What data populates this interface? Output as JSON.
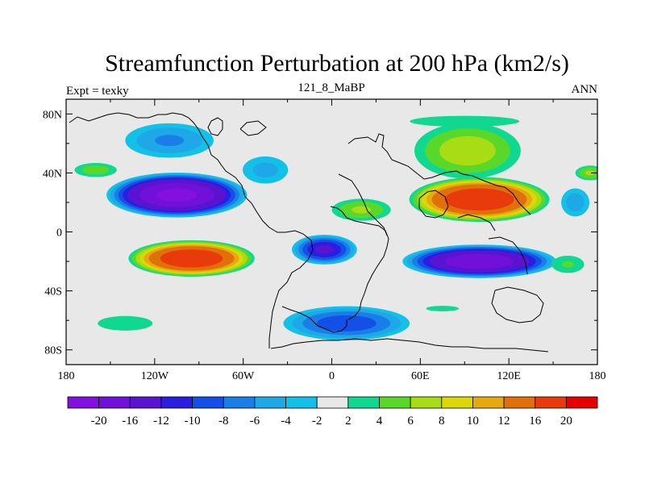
{
  "chart_data": {
    "type": "heatmap",
    "title": "Streamfunction Perturbation at 200 hPa (km2/s)",
    "subtitle_left": "Expt = texky",
    "subtitle_center": "121_8_MaBP",
    "subtitle_right": "ANN",
    "x_ticks": [
      "180",
      "120W",
      "60W",
      "0",
      "60E",
      "120E",
      "180"
    ],
    "x_tick_values": [
      -180,
      -120,
      -60,
      0,
      60,
      120,
      180
    ],
    "y_ticks": [
      "80N",
      "40N",
      "0",
      "40S",
      "80S"
    ],
    "y_tick_values": [
      80,
      40,
      0,
      -40,
      -80
    ],
    "xlim": [
      -180,
      180
    ],
    "ylim": [
      -90,
      90
    ],
    "colorbar_labels": [
      "-20",
      "-16",
      "-12",
      "-10",
      "-8",
      "-6",
      "-4",
      "-2",
      "2",
      "4",
      "6",
      "8",
      "10",
      "12",
      "16",
      "20"
    ],
    "colorbar_levels": [
      -20,
      -16,
      -12,
      -10,
      -8,
      -6,
      -4,
      -2,
      2,
      4,
      6,
      8,
      10,
      12,
      16,
      20
    ],
    "colorbar_colors": [
      "#8410e0",
      "#7010d8",
      "#5a14d0",
      "#2a1ee0",
      "#1450e8",
      "#1a7ee8",
      "#1ea8e8",
      "#12c0e8",
      "#e8e8e8",
      "#10d890",
      "#5ad82a",
      "#a8dc14",
      "#dcd60a",
      "#e8a810",
      "#e0700a",
      "#e83a0a",
      "#e60000"
    ],
    "features": [
      {
        "lon": -105,
        "lat": 25,
        "rlon": 50,
        "rlat": 16,
        "value": -20
      },
      {
        "lon": -95,
        "lat": -18,
        "rlon": 45,
        "rlat": 13,
        "value": 19
      },
      {
        "lon": -110,
        "lat": 62,
        "rlon": 36,
        "rlat": 14,
        "value": -6
      },
      {
        "lon": -45,
        "lat": 42,
        "rlon": 20,
        "rlat": 12,
        "value": -4.5
      },
      {
        "lon": 100,
        "lat": 22,
        "rlon": 50,
        "rlat": 16,
        "value": 19
      },
      {
        "lon": 92,
        "lat": 55,
        "rlon": 42,
        "rlat": 22,
        "value": 7
      },
      {
        "lon": 90,
        "lat": 75,
        "rlon": 60,
        "rlat": 6,
        "value": 3
      },
      {
        "lon": 20,
        "lat": 15,
        "rlon": 24,
        "rlat": 9,
        "value": 6
      },
      {
        "lon": 100,
        "lat": -20,
        "rlon": 55,
        "rlat": 12,
        "value": -18
      },
      {
        "lon": -5,
        "lat": -12,
        "rlon": 24,
        "rlat": 11,
        "value": -12
      },
      {
        "lon": 10,
        "lat": -62,
        "rlon": 48,
        "rlat": 13,
        "value": -9
      },
      {
        "lon": 75,
        "lat": -52,
        "rlon": 18,
        "rlat": 3,
        "value": 3
      },
      {
        "lon": 165,
        "lat": 20,
        "rlon": 12,
        "rlat": 12,
        "value": -5
      },
      {
        "lon": -160,
        "lat": 42,
        "rlon": 18,
        "rlat": 6,
        "value": 5
      },
      {
        "lon": 175,
        "lat": 40,
        "rlon": 12,
        "rlat": 6,
        "value": 6
      },
      {
        "lon": -140,
        "lat": -62,
        "rlon": 30,
        "rlat": 8,
        "value": 3
      },
      {
        "lon": 160,
        "lat": -22,
        "rlon": 15,
        "rlat": 8,
        "value": 4
      }
    ]
  }
}
